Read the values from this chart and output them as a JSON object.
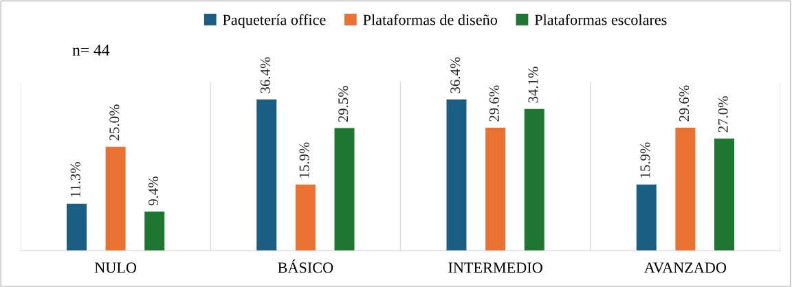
{
  "chart_data": {
    "type": "bar",
    "categories": [
      "NULO",
      "BÁSICO",
      "INTERMEDIO",
      "AVANZADO"
    ],
    "series": [
      {
        "name": "Paquetería office",
        "color": "#1a5e83",
        "values": [
          11.3,
          36.4,
          36.4,
          15.9
        ],
        "value_labels": [
          "11.3%",
          "36.4%",
          "36.4%",
          "15.9%"
        ]
      },
      {
        "name": "Plataformas de diseño",
        "color": "#e97232",
        "values": [
          25.0,
          15.9,
          29.6,
          29.6
        ],
        "value_labels": [
          "25.0%",
          "15.9%",
          "29.6%",
          "29.6%"
        ]
      },
      {
        "name": "Plataformas escolares",
        "color": "#1e7631",
        "values": [
          9.4,
          29.5,
          34.1,
          27.0
        ],
        "value_labels": [
          "9.4%",
          "29.5%",
          "34.1%",
          "27.0%"
        ]
      }
    ],
    "annotations": [
      "n= 44"
    ],
    "legend": "top",
    "grid": "x",
    "tick_labels": "x"
  }
}
